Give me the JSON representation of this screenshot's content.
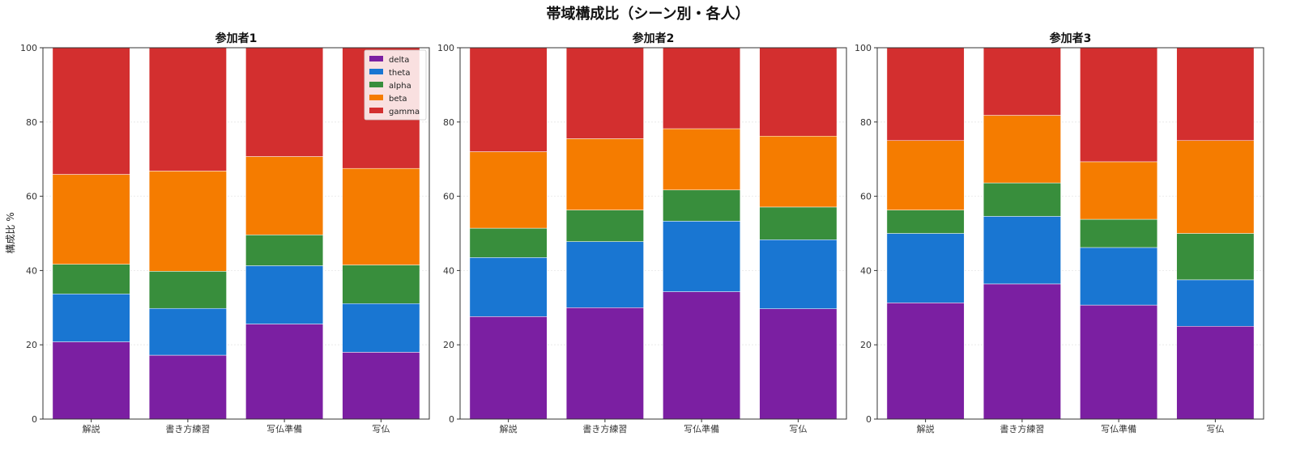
{
  "title": "帯域構成比（シーン別・各人）",
  "ylabel": "構成比 %",
  "colors": {
    "delta": "#7b1fa2",
    "theta": "#1976d2",
    "alpha": "#388e3c",
    "beta": "#f57c00",
    "gamma": "#d32f2f"
  },
  "chart_data": [
    {
      "type": "bar",
      "stacked": true,
      "title": "参加者1",
      "ylabel": "構成比 %",
      "ylim": [
        0,
        100
      ],
      "yticks": [
        0,
        20,
        40,
        60,
        80,
        100
      ],
      "categories": [
        "解説",
        "書き方練習",
        "写仏準備",
        "写仏"
      ],
      "legend": "top-right",
      "series": [
        {
          "name": "delta",
          "values": [
            20.8,
            17.2,
            25.6,
            18.0
          ]
        },
        {
          "name": "theta",
          "values": [
            12.9,
            12.6,
            15.7,
            13.1
          ]
        },
        {
          "name": "alpha",
          "values": [
            8.0,
            10.0,
            8.3,
            10.4
          ]
        },
        {
          "name": "beta",
          "values": [
            24.2,
            27.0,
            21.1,
            26.0
          ]
        },
        {
          "name": "gamma",
          "values": [
            34.1,
            33.2,
            29.3,
            32.5
          ]
        }
      ]
    },
    {
      "type": "bar",
      "stacked": true,
      "title": "参加者2",
      "ylim": [
        0,
        100
      ],
      "yticks": [
        0,
        20,
        40,
        60,
        80,
        100
      ],
      "categories": [
        "解説",
        "書き方練習",
        "写仏準備",
        "写仏"
      ],
      "series": [
        {
          "name": "delta",
          "values": [
            27.6,
            30.0,
            34.3,
            29.7
          ]
        },
        {
          "name": "theta",
          "values": [
            15.9,
            17.8,
            19.0,
            18.6
          ]
        },
        {
          "name": "alpha",
          "values": [
            7.9,
            8.5,
            8.4,
            8.8
          ]
        },
        {
          "name": "beta",
          "values": [
            20.6,
            19.2,
            16.5,
            19.1
          ]
        },
        {
          "name": "gamma",
          "values": [
            28.0,
            24.5,
            21.8,
            23.8
          ]
        }
      ]
    },
    {
      "type": "bar",
      "stacked": true,
      "title": "参加者3",
      "ylim": [
        0,
        100
      ],
      "yticks": [
        0,
        20,
        40,
        60,
        80,
        100
      ],
      "categories": [
        "解説",
        "書き方練習",
        "写仏準備",
        "写仏"
      ],
      "series": [
        {
          "name": "delta",
          "values": [
            31.3,
            36.4,
            30.7,
            25.0
          ]
        },
        {
          "name": "theta",
          "values": [
            18.7,
            18.2,
            15.5,
            12.5
          ]
        },
        {
          "name": "alpha",
          "values": [
            6.3,
            9.0,
            7.6,
            12.5
          ]
        },
        {
          "name": "beta",
          "values": [
            18.7,
            18.2,
            15.5,
            25.0
          ]
        },
        {
          "name": "gamma",
          "values": [
            25.0,
            18.2,
            30.7,
            25.0
          ]
        }
      ]
    }
  ]
}
